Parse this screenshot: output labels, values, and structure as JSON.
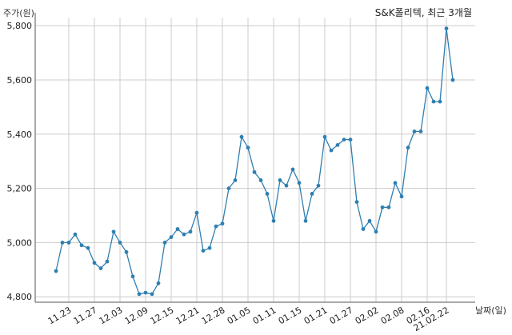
{
  "chart_data": {
    "type": "line",
    "title": "S&K폴리텍, 최근 3개월",
    "ylabel": "주가(원)",
    "xlabel": "날짜(일)",
    "ylim": [
      4780,
      5830
    ],
    "yticks": [
      4800,
      5000,
      5200,
      5400,
      5600,
      5800
    ],
    "ytick_labels": [
      "4,800",
      "5,000",
      "5,200",
      "5,400",
      "5,600",
      "5,800"
    ],
    "grid": true,
    "color": "#2f7fb0",
    "xticks": [
      {
        "index": 2,
        "label": "11.23"
      },
      {
        "index": 6,
        "label": "11.27"
      },
      {
        "index": 10,
        "label": "12.03"
      },
      {
        "index": 14,
        "label": "12.09"
      },
      {
        "index": 18,
        "label": "12.15"
      },
      {
        "index": 22,
        "label": "12.21"
      },
      {
        "index": 26,
        "label": "12.28"
      },
      {
        "index": 30,
        "label": "01.05"
      },
      {
        "index": 34,
        "label": "01.11"
      },
      {
        "index": 38,
        "label": "01.15"
      },
      {
        "index": 42,
        "label": "01.21"
      },
      {
        "index": 46,
        "label": "01.27"
      },
      {
        "index": 50,
        "label": "02.02"
      },
      {
        "index": 54,
        "label": "02.08"
      },
      {
        "index": 58,
        "label": "02.16"
      },
      {
        "index": 61,
        "label": "21.02.22"
      }
    ],
    "values": [
      4895,
      5000,
      5000,
      5030,
      4990,
      4980,
      4925,
      4905,
      4930,
      5040,
      5000,
      4965,
      4875,
      4810,
      4815,
      4810,
      4850,
      5000,
      5020,
      5050,
      5030,
      5040,
      5110,
      4970,
      4980,
      5060,
      5070,
      5200,
      5230,
      5390,
      5350,
      5260,
      5230,
      5180,
      5080,
      5230,
      5210,
      5270,
      5220,
      5080,
      5180,
      5210,
      5390,
      5340,
      5360,
      5380,
      5380,
      5150,
      5050,
      5080,
      5040,
      5130,
      5130,
      5220,
      5170,
      5350,
      5410,
      5410,
      5570,
      5520,
      5520,
      5790,
      5600
    ]
  }
}
